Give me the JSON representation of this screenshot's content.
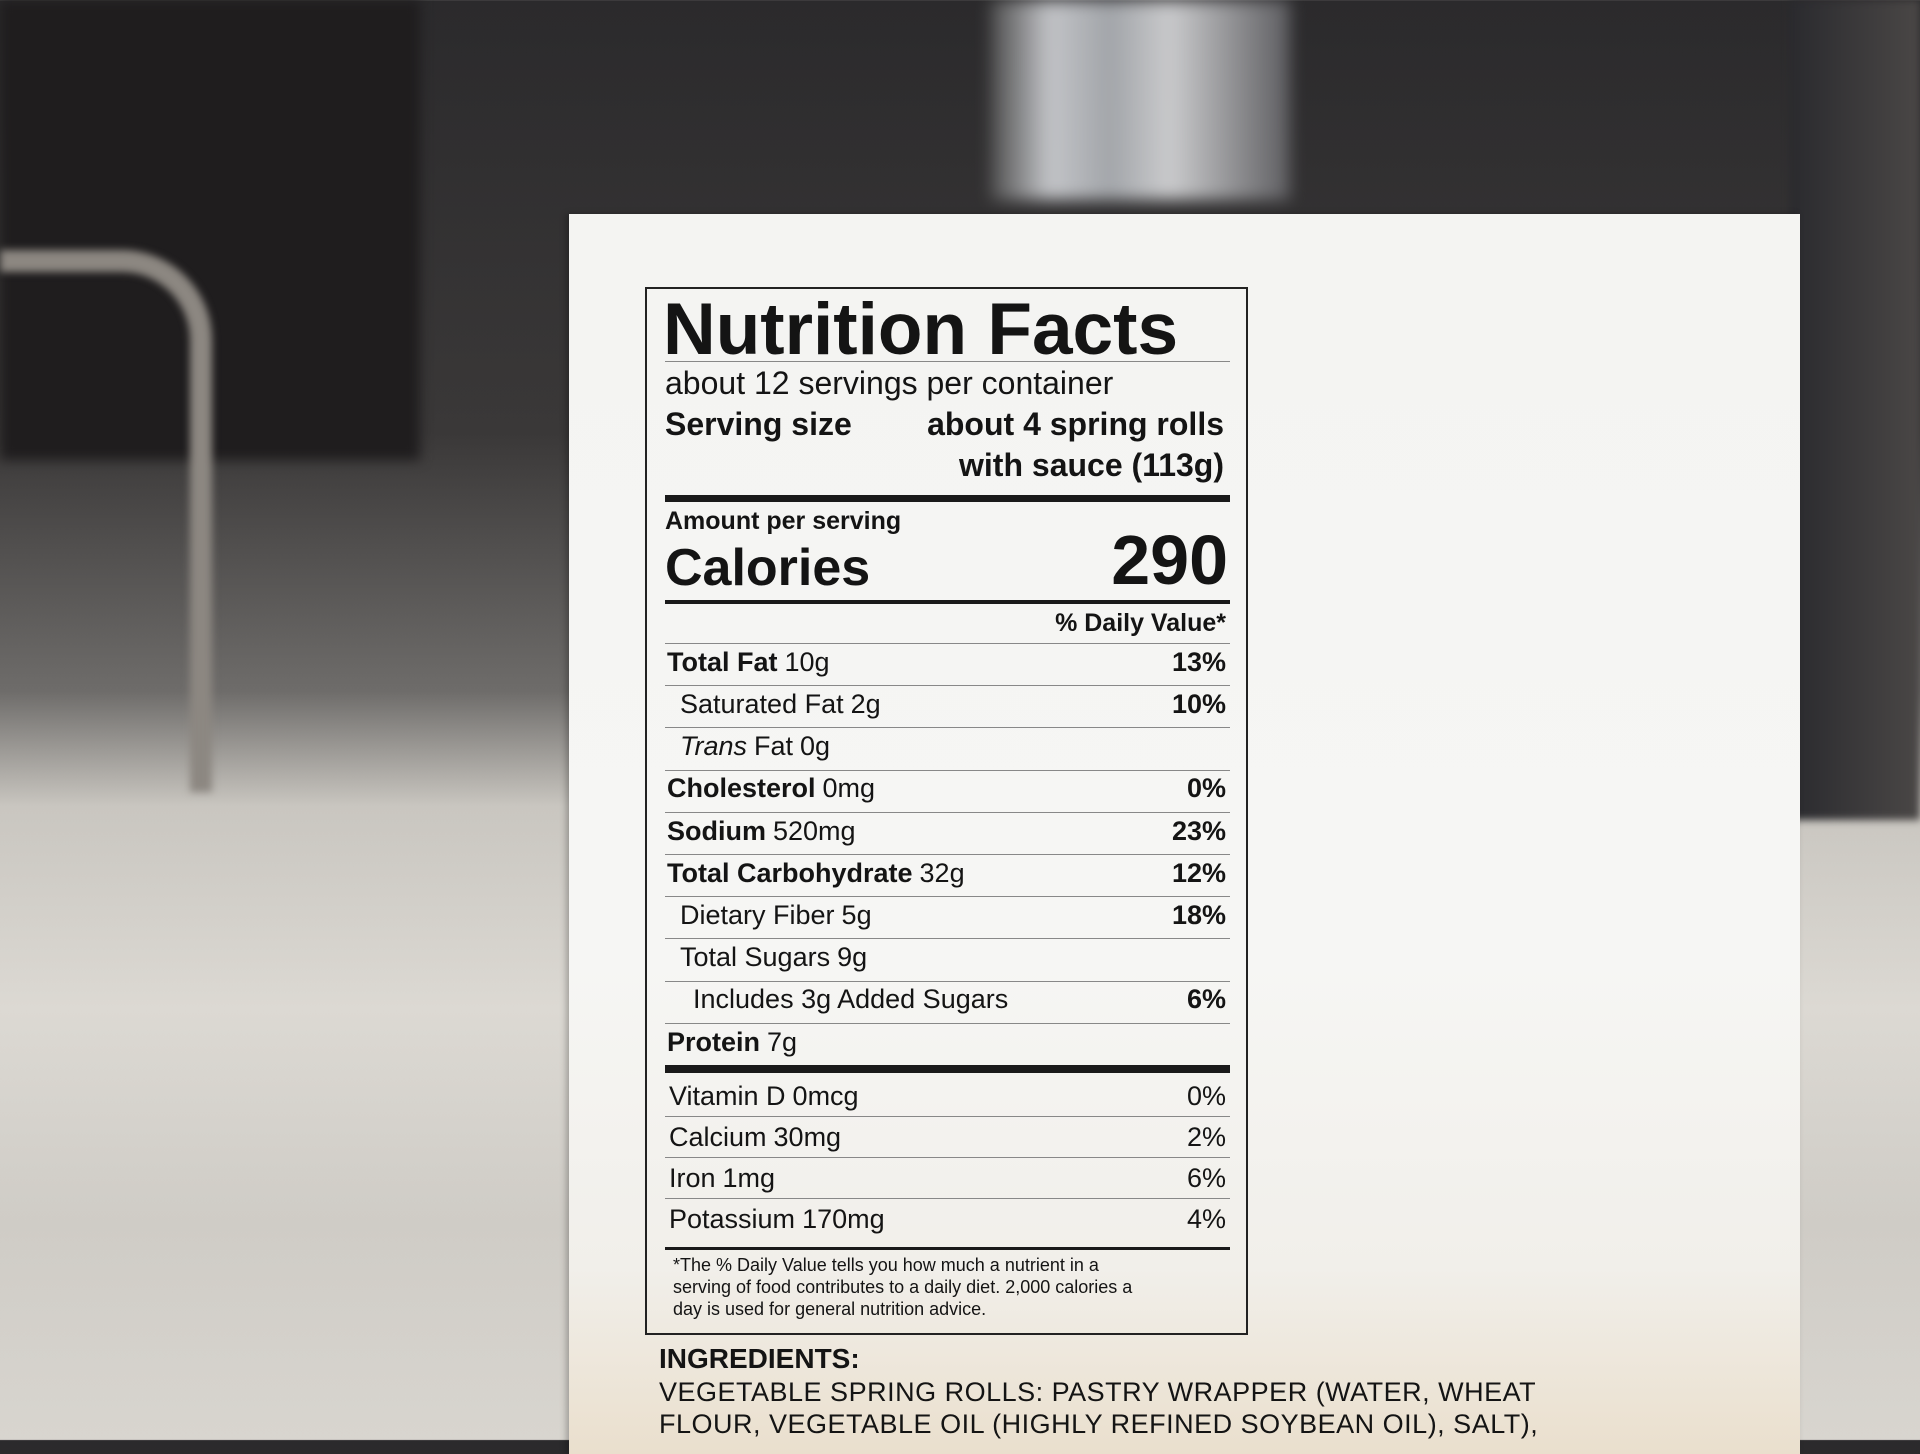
{
  "label": {
    "title": "Nutrition Facts",
    "servings": "about 12 servings per container",
    "serving_size_label": "Serving size",
    "serving_size_lines": [
      "about 4 spring rolls",
      "with sauce (113g)"
    ],
    "amount_per_serving": "Amount per serving",
    "calories_label": "Calories",
    "calories_value": "290",
    "daily_value_header": "% Daily Value*",
    "nutrients": [
      {
        "name": "Total Fat",
        "amount": "10g",
        "dv": "13%"
      },
      {
        "name": "Saturated Fat",
        "amount": "2g",
        "dv": "10%"
      },
      {
        "prefix": "Trans",
        "name": "Fat",
        "amount": "0g"
      },
      {
        "name": "Cholesterol",
        "amount": "0mg",
        "dv": "0%"
      },
      {
        "name": "Sodium",
        "amount": "520mg",
        "dv": "23%"
      },
      {
        "name": "Total Carbohydrate",
        "amount": "32g",
        "dv": "12%"
      },
      {
        "name": "Dietary Fiber",
        "amount": "5g",
        "dv": "18%"
      },
      {
        "name": "Total Sugars",
        "amount": "9g"
      },
      {
        "name": "Includes 3g Added Sugars",
        "dv": "6%"
      },
      {
        "name": "Protein",
        "amount": "7g"
      }
    ],
    "vitamins": [
      {
        "name": "Vitamin D",
        "amount": "0mcg",
        "dv": "0%"
      },
      {
        "name": "Calcium",
        "amount": "30mg",
        "dv": "2%"
      },
      {
        "name": "Iron",
        "amount": "1mg",
        "dv": "6%"
      },
      {
        "name": "Potassium",
        "amount": "170mg",
        "dv": "4%"
      }
    ],
    "footnote_lines": [
      "*The % Daily Value tells you how much a nutrient in a",
      "serving of food contributes to a daily diet. 2,000 calories a",
      "day is used for general nutrition advice."
    ]
  },
  "ingredients": {
    "heading": "INGREDIENTS:",
    "lines": [
      "VEGETABLE SPRING ROLLS: PASTRY WRAPPER (WATER, WHEAT",
      "FLOUR, VEGETABLE OIL (HIGHLY REFINED SOYBEAN OIL), SALT),"
    ]
  }
}
